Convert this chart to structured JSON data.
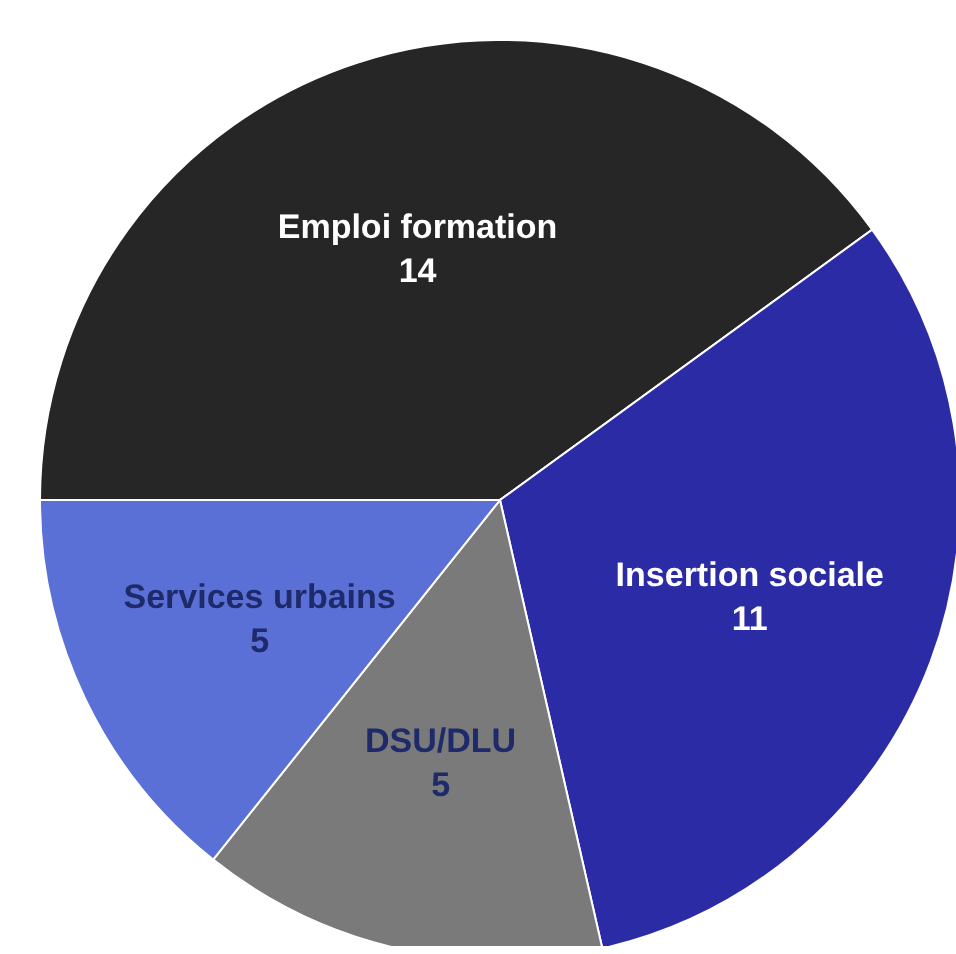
{
  "chart_data": {
    "type": "pie",
    "categories": [
      "Emploi formation",
      "Insertion sociale",
      "DSU/DLU",
      "Services urbains"
    ],
    "values": [
      14,
      11,
      5,
      5
    ],
    "colors": [
      "#262626",
      "#2b2ba6",
      "#7a7a7a",
      "#5a70d6"
    ],
    "data_labels": true
  }
}
